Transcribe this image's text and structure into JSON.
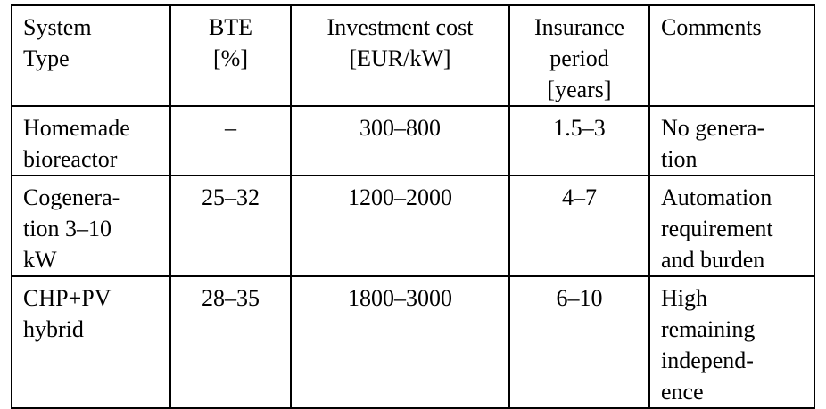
{
  "table": {
    "header": [
      [
        "System",
        "Type"
      ],
      [
        "BTE",
        "[%]"
      ],
      [
        "Investment cost",
        "[EUR/kW]"
      ],
      [
        "Insurance",
        "period",
        "[years]"
      ],
      [
        "Comments"
      ]
    ],
    "rows": [
      [
        [
          "Homemade",
          "bioreactor"
        ],
        [
          "–"
        ],
        [
          "300–800"
        ],
        [
          "1.5–3"
        ],
        [
          "No genera-",
          "tion"
        ]
      ],
      [
        [
          "Cogenera-",
          "tion 3–10",
          "kW"
        ],
        [
          "25–32"
        ],
        [
          "1200–2000"
        ],
        [
          "4–7"
        ],
        [
          "Automation",
          "requirement",
          "and burden"
        ]
      ],
      [
        [
          "CHP+PV",
          "hybrid"
        ],
        [
          "28–35"
        ],
        [
          "1800–3000"
        ],
        [
          "6–10"
        ],
        [
          "High",
          "remaining",
          "independ-",
          "ence"
        ]
      ]
    ]
  }
}
